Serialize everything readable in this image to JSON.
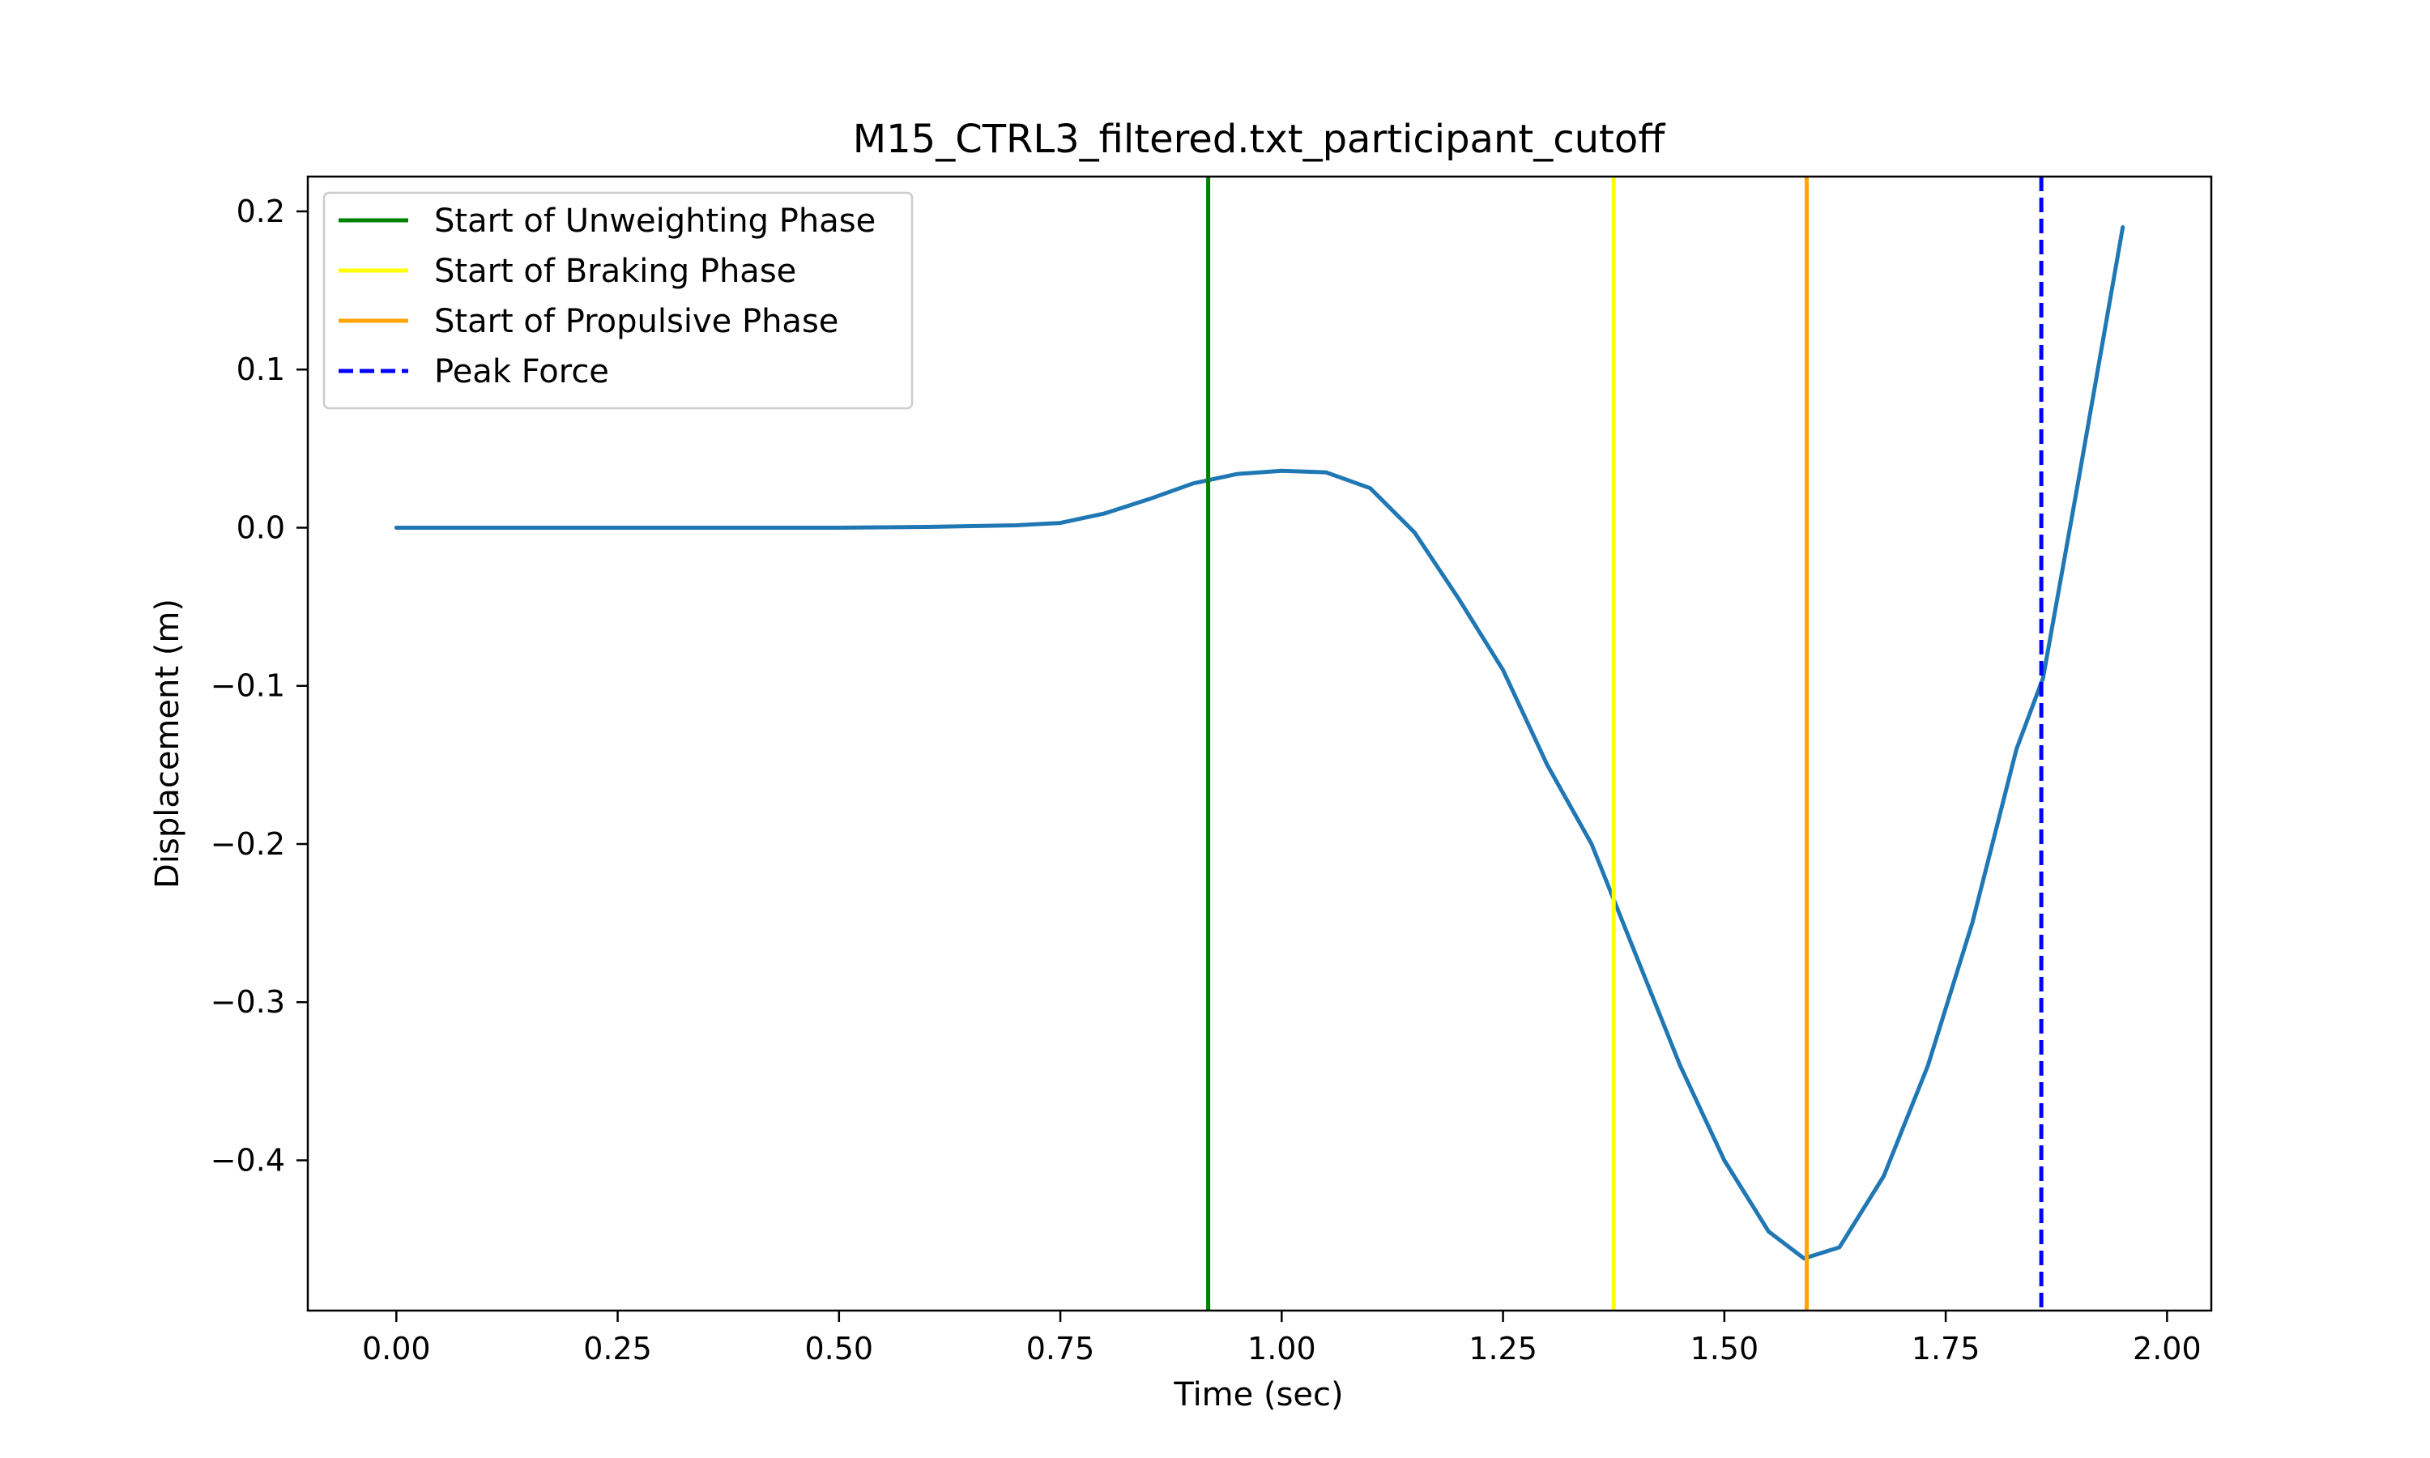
{
  "chart_data": {
    "type": "line",
    "title": "M15_CTRL3_filtered.txt_participant_cutoff",
    "xlabel": "Time (sec)",
    "ylabel": "Displacement (m)",
    "xlim": [
      -0.1,
      2.05
    ],
    "ylim": [
      -0.495,
      0.222
    ],
    "x_ticks": [
      0.0,
      0.25,
      0.5,
      0.75,
      1.0,
      1.25,
      1.5,
      1.75,
      2.0
    ],
    "x_tick_labels": [
      "0.00",
      "0.25",
      "0.50",
      "0.75",
      "1.00",
      "1.25",
      "1.50",
      "1.75",
      "2.00"
    ],
    "y_ticks": [
      0.2,
      0.1,
      0.0,
      -0.1,
      -0.2,
      -0.3,
      -0.4
    ],
    "y_tick_labels": [
      "0.2",
      "0.1",
      "0.0",
      "−0.1",
      "−0.2",
      "−0.3",
      "−0.4"
    ],
    "grid": false,
    "legend_position": "upper-left",
    "series": [
      {
        "color": "#1f77b4",
        "x": [
          0.0,
          0.1,
          0.2,
          0.3,
          0.4,
          0.5,
          0.6,
          0.7,
          0.75,
          0.8,
          0.85,
          0.9,
          0.95,
          1.0,
          1.05,
          1.1,
          1.15,
          1.2,
          1.25,
          1.3,
          1.35,
          1.4,
          1.45,
          1.5,
          1.55,
          1.59,
          1.63,
          1.68,
          1.73,
          1.78,
          1.83,
          1.86,
          1.9,
          1.95
        ],
        "y": [
          0.0,
          0.0,
          0.0,
          0.0,
          0.0,
          0.0,
          0.0005,
          0.0015,
          0.003,
          0.009,
          0.018,
          0.028,
          0.034,
          0.036,
          0.035,
          0.025,
          -0.003,
          -0.045,
          -0.09,
          -0.15,
          -0.2,
          -0.27,
          -0.34,
          -0.4,
          -0.445,
          -0.462,
          -0.455,
          -0.41,
          -0.34,
          -0.25,
          -0.14,
          -0.095,
          0.03,
          0.19
        ]
      }
    ],
    "vlines": [
      {
        "label": "Start of Unweighting Phase",
        "x": 0.917,
        "color": "#008000",
        "style": "solid"
      },
      {
        "label": "Start of Braking Phase",
        "x": 1.375,
        "color": "#ffff00",
        "style": "solid"
      },
      {
        "label": "Start of Propulsive Phase",
        "x": 1.593,
        "color": "#ffa500",
        "style": "solid"
      },
      {
        "label": "Peak Force",
        "x": 1.858,
        "color": "#0000ff",
        "style": "dashed"
      }
    ]
  }
}
